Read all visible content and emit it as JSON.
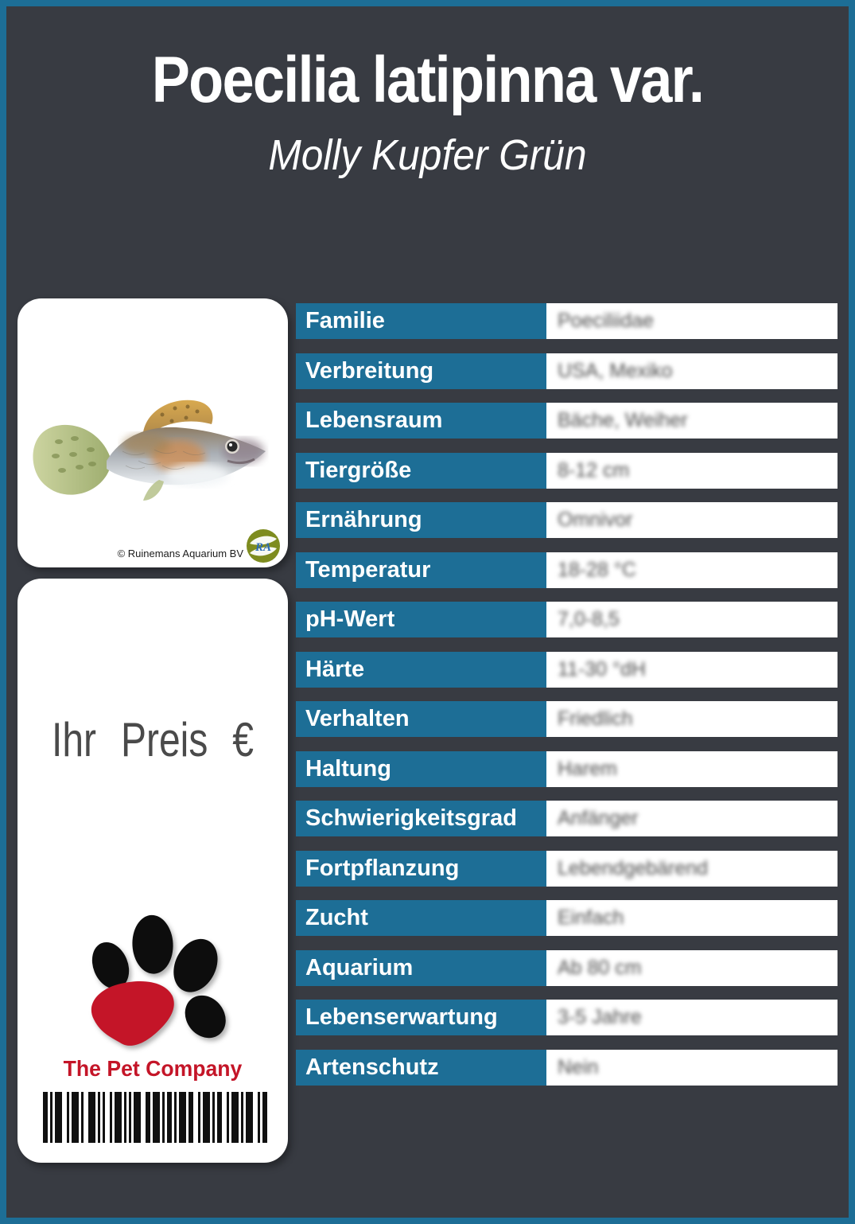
{
  "header": {
    "title": "Poecilia latipinna var.",
    "subtitle": "Molly Kupfer Grün"
  },
  "photo_card": {
    "credit": "© Ruinemans Aquarium BV",
    "logo_text": "RA"
  },
  "price_card": {
    "price_label": "Ihr Preis €",
    "brand": "The Pet Company"
  },
  "table": {
    "rows": [
      {
        "label": "Familie",
        "value": "Poeciliidae"
      },
      {
        "label": "Verbreitung",
        "value": "USA, Mexiko"
      },
      {
        "label": "Lebensraum",
        "value": "Bäche, Weiher"
      },
      {
        "label": "Tiergröße",
        "value": "8-12 cm"
      },
      {
        "label": "Ernährung",
        "value": "Omnivor"
      },
      {
        "label": "Temperatur",
        "value": "18-28 °C"
      },
      {
        "label": "pH-Wert",
        "value": "7,0-8,5"
      },
      {
        "label": "Härte",
        "value": "11-30 °dH"
      },
      {
        "label": "Verhalten",
        "value": "Friedlich"
      },
      {
        "label": "Haltung",
        "value": "Harem"
      },
      {
        "label": "Schwierigkeitsgrad",
        "value": "Anfänger"
      },
      {
        "label": "Fortpflanzung",
        "value": "Lebendgebärend"
      },
      {
        "label": "Zucht",
        "value": "Einfach"
      },
      {
        "label": "Aquarium",
        "value": "Ab 80 cm"
      },
      {
        "label": "Lebenserwartung",
        "value": "3-5 Jahre"
      },
      {
        "label": "Artenschutz",
        "value": "Nein"
      }
    ]
  },
  "colors": {
    "accent_blue": "#1d6e96",
    "background": "#383b42",
    "brand_red": "#c41528"
  },
  "barcode": {
    "pattern": [
      2,
      1,
      1,
      1,
      3,
      2,
      1,
      1,
      3,
      1,
      1,
      2,
      3,
      1,
      1,
      1,
      1,
      2,
      1,
      1,
      3,
      1,
      1,
      1,
      1,
      1,
      3,
      2,
      2,
      1,
      3,
      1,
      1,
      1,
      2,
      1,
      1,
      1,
      3,
      1,
      2,
      2,
      1,
      1,
      3,
      1,
      1,
      1,
      2,
      2,
      1,
      1,
      3,
      1,
      1,
      1,
      3,
      2,
      1,
      1,
      2
    ]
  }
}
